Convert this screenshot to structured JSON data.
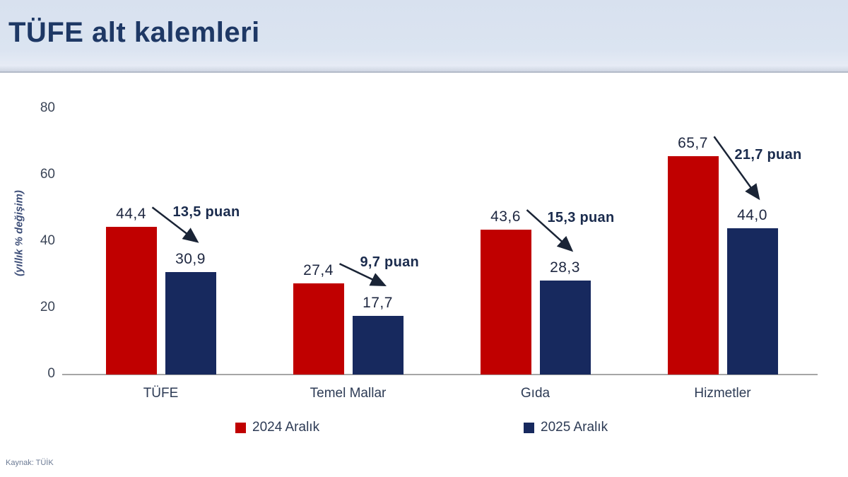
{
  "header": {
    "title": "TÜFE alt kalemleri"
  },
  "source_note": "Kaynak: TÜİK",
  "colors": {
    "series_2024": "#c00000",
    "series_2025": "#17295e",
    "header_background": "#dbe4f1",
    "title_text": "#1e3865",
    "axis_line": "#a6a6a6"
  },
  "chart_data": {
    "type": "bar",
    "title": "TÜFE alt kalemleri",
    "xlabel": "",
    "ylabel": "(yıllık % değişim)",
    "ylim": [
      0,
      80
    ],
    "yticks": [
      "0",
      "20",
      "40",
      "60",
      "80"
    ],
    "ytick_values": [
      0,
      20,
      40,
      60,
      80
    ],
    "grid": false,
    "legend_position": "bottom",
    "categories": [
      "TÜFE",
      "Temel Mallar",
      "Gıda",
      "Hizmetler"
    ],
    "series": [
      {
        "name": "2024 Aralık",
        "color": "#c00000",
        "values": [
          44.4,
          27.4,
          43.6,
          65.7
        ],
        "value_labels": [
          "44,4",
          "27,4",
          "43,6",
          "65,7"
        ]
      },
      {
        "name": "2025 Aralık",
        "color": "#17295e",
        "values": [
          30.9,
          17.7,
          28.3,
          44.0
        ],
        "value_labels": [
          "30,9",
          "17,7",
          "28,3",
          "44,0"
        ]
      }
    ],
    "annotations": [
      {
        "category": "TÜFE",
        "delta": 13.5,
        "text": "13,5 puan"
      },
      {
        "category": "Temel Mallar",
        "delta": 9.7,
        "text": "9,7 puan"
      },
      {
        "category": "Gıda",
        "delta": 15.3,
        "text": "15,3 puan"
      },
      {
        "category": "Hizmetler",
        "delta": 21.7,
        "text": "21,7 puan"
      }
    ]
  }
}
